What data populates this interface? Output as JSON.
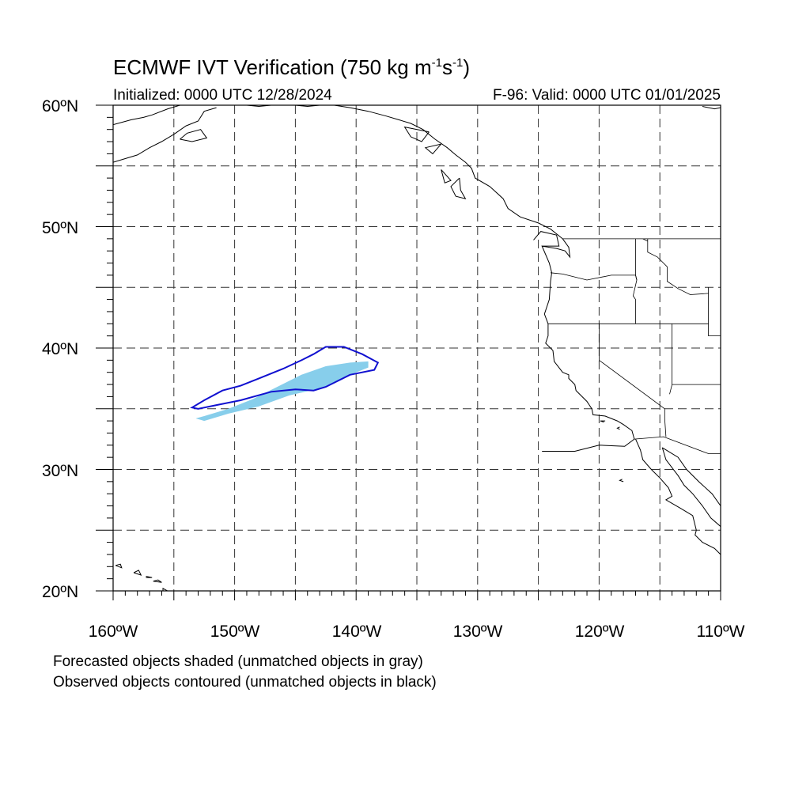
{
  "title": {
    "prefix": "ECMWF IVT Verification (750 kg m",
    "exp1": "-1",
    "mid": "s",
    "exp2": "-1",
    "suffix": ")"
  },
  "initialized": "Initialized: 0000 UTC 12/28/2024",
  "valid": "F-96: Valid: 0000 UTC 01/01/2025",
  "lat_labels": [
    "60ºN",
    "50ºN",
    "40ºN",
    "30ºN",
    "20ºN"
  ],
  "lon_labels": [
    "160ºW",
    "150ºW",
    "140ºW",
    "130ºW",
    "120ºW",
    "110ºW"
  ],
  "caption_forecast": "Forecasted objects shaded (unmatched objects in gray)",
  "caption_observed": "Observed objects contoured (unmatched objects in black)",
  "map": {
    "lon_range": [
      -160,
      -110
    ],
    "lat_range": [
      20,
      60
    ],
    "grid_spacing_deg": 5,
    "colors": {
      "forecast_fill": "#87ceeb",
      "observed_contour": "#1010d0",
      "coastline": "#000000",
      "grid": "#333333"
    },
    "forecast_object": [
      [
        -153.2,
        34.2
      ],
      [
        -152.5,
        34.4
      ],
      [
        -150.5,
        35.0
      ],
      [
        -148.5,
        35.8
      ],
      [
        -146.5,
        36.8
      ],
      [
        -144.5,
        37.8
      ],
      [
        -142.5,
        38.5
      ],
      [
        -140.5,
        38.8
      ],
      [
        -139.0,
        38.9
      ],
      [
        -139.0,
        38.4
      ],
      [
        -140.5,
        37.8
      ],
      [
        -142.5,
        36.8
      ],
      [
        -145.5,
        36.1
      ],
      [
        -148.0,
        35.2
      ],
      [
        -150.5,
        34.6
      ],
      [
        -152.5,
        34.0
      ]
    ],
    "observed_object": [
      [
        -153.5,
        35.1
      ],
      [
        -152.5,
        35.7
      ],
      [
        -151.0,
        36.5
      ],
      [
        -149.5,
        36.9
      ],
      [
        -148.0,
        37.5
      ],
      [
        -146.0,
        38.3
      ],
      [
        -144.5,
        39.0
      ],
      [
        -143.5,
        39.5
      ],
      [
        -142.5,
        40.1
      ],
      [
        -141.0,
        40.1
      ],
      [
        -139.5,
        39.5
      ],
      [
        -138.2,
        38.8
      ],
      [
        -138.5,
        38.2
      ],
      [
        -140.5,
        37.8
      ],
      [
        -142.5,
        36.8
      ],
      [
        -143.5,
        36.5
      ],
      [
        -145.0,
        36.6
      ],
      [
        -147.0,
        36.4
      ],
      [
        -149.5,
        35.7
      ],
      [
        -151.5,
        35.3
      ],
      [
        -153.0,
        35.0
      ]
    ],
    "coastlines": [
      [
        [
          -124.7,
          31.5
        ],
        [
          -122.0,
          31.5
        ],
        [
          -120.0,
          32.0
        ],
        [
          -117.9,
          31.9
        ],
        [
          -117.1,
          32.5
        ]
      ],
      [
        [
          -117.1,
          32.5
        ],
        [
          -117.3,
          33.2
        ],
        [
          -118.0,
          33.7
        ],
        [
          -118.5,
          34.0
        ],
        [
          -119.5,
          34.4
        ],
        [
          -120.5,
          34.5
        ],
        [
          -120.6,
          35.0
        ],
        [
          -121.0,
          35.6
        ],
        [
          -121.9,
          36.5
        ],
        [
          -122.0,
          37.0
        ],
        [
          -122.5,
          37.5
        ],
        [
          -122.5,
          37.8
        ],
        [
          -123.0,
          38.0
        ],
        [
          -123.7,
          38.9
        ],
        [
          -123.8,
          39.8
        ],
        [
          -124.4,
          40.4
        ],
        [
          -124.2,
          41.0
        ],
        [
          -124.2,
          42.0
        ],
        [
          -124.5,
          42.8
        ],
        [
          -124.1,
          44.0
        ],
        [
          -124.0,
          45.5
        ],
        [
          -123.9,
          46.2
        ],
        [
          -124.1,
          47.0
        ],
        [
          -124.7,
          48.4
        ],
        [
          -123.5,
          48.2
        ],
        [
          -122.8,
          48.0
        ],
        [
          -122.4,
          47.5
        ],
        [
          -122.5,
          48.3
        ],
        [
          -123.0,
          49.0
        ]
      ],
      [
        [
          -125.4,
          48.9
        ],
        [
          -124.8,
          49.6
        ],
        [
          -123.5,
          49.3
        ],
        [
          -123.3,
          48.4
        ],
        [
          -124.7,
          48.4
        ]
      ],
      [
        [
          -123.0,
          49.0
        ],
        [
          -124.0,
          49.8
        ],
        [
          -125.0,
          50.3
        ],
        [
          -126.5,
          50.8
        ],
        [
          -127.5,
          51.5
        ],
        [
          -127.9,
          52.3
        ],
        [
          -129.0,
          53.3
        ],
        [
          -130.2,
          54.0
        ],
        [
          -130.5,
          54.8
        ],
        [
          -131.0,
          55.3
        ],
        [
          -131.8,
          55.9
        ],
        [
          -132.5,
          56.5
        ],
        [
          -133.5,
          57.2
        ],
        [
          -134.5,
          58.0
        ],
        [
          -135.5,
          58.5
        ],
        [
          -136.5,
          58.8
        ],
        [
          -137.5,
          59.1
        ],
        [
          -139.0,
          59.5
        ],
        [
          -140.5,
          59.8
        ],
        [
          -141.8,
          60.0
        ]
      ],
      [
        [
          -131.5,
          54.0
        ],
        [
          -132.2,
          53.3
        ],
        [
          -131.8,
          52.5
        ],
        [
          -131.0,
          52.3
        ],
        [
          -131.4,
          53.0
        ],
        [
          -131.5,
          54.0
        ]
      ],
      [
        [
          -133.0,
          54.7
        ],
        [
          -132.7,
          53.6
        ],
        [
          -132.2,
          53.8
        ],
        [
          -133.0,
          54.7
        ]
      ],
      [
        [
          -134.0,
          57.8
        ],
        [
          -134.6,
          57.0
        ],
        [
          -135.5,
          57.4
        ],
        [
          -136.0,
          58.2
        ],
        [
          -134.0,
          57.8
        ]
      ],
      [
        [
          -133.0,
          56.8
        ],
        [
          -133.7,
          56.0
        ],
        [
          -134.3,
          56.5
        ],
        [
          -133.0,
          56.8
        ]
      ],
      [
        [
          -117.0,
          32.5
        ],
        [
          -116.6,
          31.6
        ],
        [
          -116.4,
          30.8
        ],
        [
          -115.7,
          30.0
        ],
        [
          -115.0,
          29.3
        ],
        [
          -114.3,
          28.5
        ],
        [
          -114.0,
          27.8
        ],
        [
          -114.5,
          27.5
        ],
        [
          -113.3,
          26.8
        ],
        [
          -112.3,
          26.2
        ],
        [
          -112.0,
          25.0
        ],
        [
          -112.1,
          24.6
        ],
        [
          -111.5,
          24.0
        ],
        [
          -110.5,
          23.5
        ],
        [
          -110.0,
          23.0
        ]
      ],
      [
        [
          -114.8,
          31.8
        ],
        [
          -114.5,
          30.8
        ],
        [
          -113.5,
          29.5
        ],
        [
          -113.0,
          28.7
        ],
        [
          -112.3,
          28.0
        ],
        [
          -111.5,
          27.0
        ],
        [
          -110.8,
          26.0
        ],
        [
          -110.0,
          25.3
        ]
      ],
      [
        [
          -110.0,
          27.0
        ],
        [
          -110.7,
          28.0
        ],
        [
          -111.8,
          29.0
        ],
        [
          -112.8,
          30.0
        ],
        [
          -113.5,
          31.0
        ],
        [
          -114.8,
          31.8
        ]
      ],
      [
        [
          -160.0,
          55.3
        ],
        [
          -158.0,
          55.9
        ],
        [
          -157.0,
          56.5
        ],
        [
          -156.0,
          57.0
        ],
        [
          -155.0,
          57.6
        ],
        [
          -154.0,
          58.3
        ],
        [
          -153.0,
          58.7
        ],
        [
          -152.5,
          59.5
        ],
        [
          -151.5,
          59.8
        ]
      ],
      [
        [
          -160.0,
          58.4
        ],
        [
          -158.5,
          58.8
        ],
        [
          -157.5,
          59.0
        ],
        [
          -156.8,
          59.2
        ],
        [
          -155.5,
          59.7
        ],
        [
          -154.5,
          60.0
        ]
      ],
      [
        [
          -154.5,
          57.2
        ],
        [
          -153.5,
          57.0
        ],
        [
          -152.3,
          57.3
        ],
        [
          -152.8,
          58.0
        ],
        [
          -153.9,
          57.7
        ],
        [
          -154.5,
          57.2
        ]
      ],
      [
        [
          -149.0,
          60.0
        ],
        [
          -148.0,
          59.9
        ],
        [
          -147.0,
          60.0
        ]
      ],
      [
        [
          -145.0,
          60.0
        ],
        [
          -144.0,
          59.9
        ],
        [
          -143.0,
          60.0
        ]
      ],
      [
        [
          -155.9,
          19.1
        ],
        [
          -155.0,
          19.4
        ],
        [
          -154.8,
          19.6
        ],
        [
          -155.9,
          20.2
        ],
        [
          -155.9,
          19.1
        ]
      ],
      [
        [
          -156.7,
          20.8
        ],
        [
          -156.0,
          20.7
        ],
        [
          -156.3,
          20.9
        ],
        [
          -156.7,
          20.8
        ]
      ],
      [
        [
          -157.3,
          21.1
        ],
        [
          -156.8,
          21.1
        ],
        [
          -157.3,
          21.2
        ]
      ],
      [
        [
          -158.3,
          21.5
        ],
        [
          -157.7,
          21.3
        ],
        [
          -157.9,
          21.7
        ],
        [
          -158.3,
          21.5
        ]
      ],
      [
        [
          -159.8,
          22.1
        ],
        [
          -159.3,
          21.9
        ],
        [
          -159.4,
          22.2
        ],
        [
          -159.8,
          22.1
        ]
      ],
      [
        [
          -111.5,
          59.9
        ],
        [
          -110.5,
          59.7
        ],
        [
          -110.0,
          59.8
        ]
      ],
      [
        [
          -118.3,
          33.3
        ],
        [
          -118.5,
          33.4
        ],
        [
          -118.3,
          33.5
        ]
      ],
      [
        [
          -119.5,
          34.0
        ],
        [
          -119.9,
          34.0
        ],
        [
          -119.6,
          33.9
        ]
      ],
      [
        [
          -118.0,
          29.0
        ],
        [
          -118.3,
          29.1
        ],
        [
          -118.1,
          29.2
        ]
      ]
    ],
    "borders": [
      [
        [
          -123.0,
          49.0
        ],
        [
          -110.0,
          49.0
        ]
      ],
      [
        [
          -124.0,
          46.2
        ],
        [
          -123.0,
          46.1
        ],
        [
          -121.0,
          45.6
        ],
        [
          -119.0,
          46.0
        ],
        [
          -117.0,
          46.0
        ],
        [
          -116.9,
          45.6
        ]
      ],
      [
        [
          -124.2,
          42.0
        ],
        [
          -117.0,
          42.0
        ],
        [
          -111.0,
          42.0
        ]
      ],
      [
        [
          -117.0,
          49.0
        ],
        [
          -117.0,
          46.0
        ],
        [
          -116.9,
          45.6
        ],
        [
          -117.2,
          44.3
        ],
        [
          -117.0,
          44.0
        ],
        [
          -117.0,
          42.0
        ]
      ],
      [
        [
          -120.0,
          42.0
        ],
        [
          -120.0,
          39.0
        ],
        [
          -114.6,
          35.0
        ],
        [
          -114.6,
          34.2
        ],
        [
          -114.5,
          32.7
        ]
      ],
      [
        [
          -114.0,
          42.0
        ],
        [
          -114.0,
          37.0
        ],
        [
          -114.2,
          36.2
        ]
      ],
      [
        [
          -116.0,
          49.0
        ],
        [
          -116.0,
          47.9
        ],
        [
          -115.2,
          47.5
        ],
        [
          -114.4,
          46.7
        ],
        [
          -114.4,
          45.5
        ],
        [
          -113.5,
          44.9
        ],
        [
          -112.5,
          44.4
        ],
        [
          -111.0,
          44.5
        ]
      ],
      [
        [
          -111.0,
          45.0
        ],
        [
          -111.0,
          41.0
        ],
        [
          -110.0,
          41.0
        ]
      ],
      [
        [
          -114.0,
          37.0
        ],
        [
          -110.0,
          37.0
        ]
      ],
      [
        [
          -117.1,
          32.5
        ],
        [
          -114.7,
          32.7
        ],
        [
          -111.0,
          31.3
        ],
        [
          -110.0,
          31.3
        ]
      ],
      [
        [
          -116.0,
          48.8
        ],
        [
          -116.4,
          49.0
        ]
      ]
    ]
  }
}
